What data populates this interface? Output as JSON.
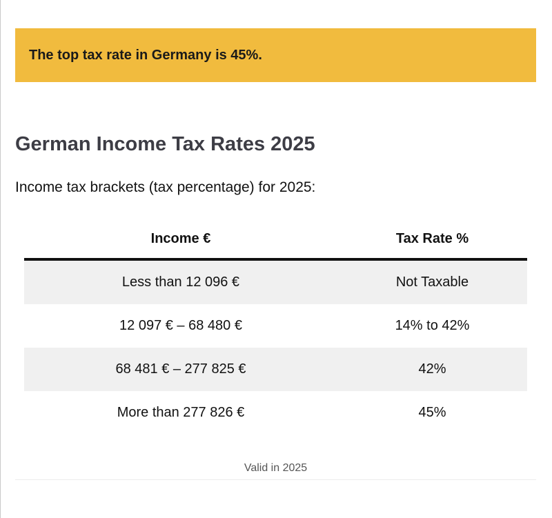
{
  "notice": {
    "text": "The top tax rate in Germany is 45%.",
    "background_color": "#f1bb3e"
  },
  "heading": "German Income Tax Rates 2025",
  "intro": "Income tax brackets (tax percentage) for 2025:",
  "table": {
    "headers": [
      "Income €",
      "Tax Rate %"
    ],
    "rows": [
      [
        "Less than 12 096 €",
        "Not Taxable"
      ],
      [
        "12 097 € – 68 480 €",
        "14% to 42%"
      ],
      [
        "68 481 € – 277 825 €",
        "42%"
      ],
      [
        "More than 277 826 €",
        "45%"
      ]
    ]
  },
  "caption": "Valid in 2025"
}
